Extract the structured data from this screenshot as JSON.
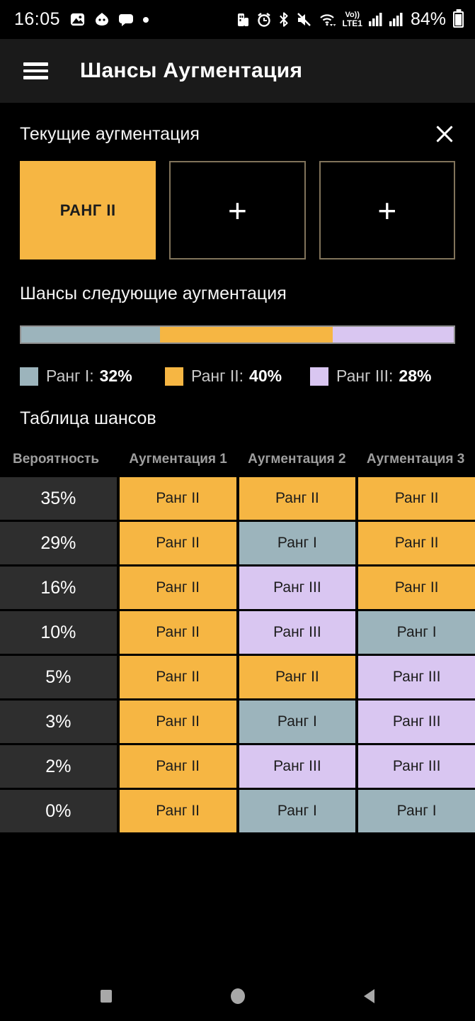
{
  "status_bar": {
    "time": "16:05",
    "battery_percent": "84%",
    "volte_line1": "Vo))",
    "volte_line2": "LTE1"
  },
  "app_bar": {
    "title": "Шансы Аугментация"
  },
  "current": {
    "title": "Текущие аугментация",
    "slot1_label": "РАНГ II",
    "slot1_color": "#f6b643",
    "slot2_label": "+",
    "slot3_label": "+"
  },
  "next_chances": {
    "title": "Шансы следующие аугментация",
    "segments": [
      {
        "name": "Ранг I",
        "label": "Ранг I:",
        "value": "32%",
        "percent": 32,
        "color": "#9cb4bc"
      },
      {
        "name": "Ранг II",
        "label": "Ранг II:",
        "value": "40%",
        "percent": 40,
        "color": "#f6b643"
      },
      {
        "name": "Ранг III",
        "label": "Ранг III:",
        "value": "28%",
        "percent": 28,
        "color": "#d9c6f1"
      }
    ]
  },
  "table": {
    "title": "Таблица шансов",
    "headers": [
      "Вероятность",
      "Аугментация 1",
      "Аугментация 2",
      "Аугментация 3"
    ],
    "rank_colors": {
      "1": "#9cb4bc",
      "2": "#f6b643",
      "3": "#d9c6f1"
    },
    "rows": [
      {
        "probability": "35%",
        "cells": [
          {
            "label": "Ранг II",
            "rank": 2
          },
          {
            "label": "Ранг II",
            "rank": 2
          },
          {
            "label": "Ранг II",
            "rank": 2
          }
        ]
      },
      {
        "probability": "29%",
        "cells": [
          {
            "label": "Ранг II",
            "rank": 2
          },
          {
            "label": "Ранг I",
            "rank": 1
          },
          {
            "label": "Ранг II",
            "rank": 2
          }
        ]
      },
      {
        "probability": "16%",
        "cells": [
          {
            "label": "Ранг II",
            "rank": 2
          },
          {
            "label": "Ранг III",
            "rank": 3
          },
          {
            "label": "Ранг II",
            "rank": 2
          }
        ]
      },
      {
        "probability": "10%",
        "cells": [
          {
            "label": "Ранг II",
            "rank": 2
          },
          {
            "label": "Ранг III",
            "rank": 3
          },
          {
            "label": "Ранг I",
            "rank": 1
          }
        ]
      },
      {
        "probability": "5%",
        "cells": [
          {
            "label": "Ранг II",
            "rank": 2
          },
          {
            "label": "Ранг II",
            "rank": 2
          },
          {
            "label": "Ранг III",
            "rank": 3
          }
        ]
      },
      {
        "probability": "3%",
        "cells": [
          {
            "label": "Ранг II",
            "rank": 2
          },
          {
            "label": "Ранг I",
            "rank": 1
          },
          {
            "label": "Ранг III",
            "rank": 3
          }
        ]
      },
      {
        "probability": "2%",
        "cells": [
          {
            "label": "Ранг II",
            "rank": 2
          },
          {
            "label": "Ранг III",
            "rank": 3
          },
          {
            "label": "Ранг III",
            "rank": 3
          }
        ]
      },
      {
        "probability": "0%",
        "cells": [
          {
            "label": "Ранг II",
            "rank": 2
          },
          {
            "label": "Ранг I",
            "rank": 1
          },
          {
            "label": "Ранг I",
            "rank": 1
          }
        ]
      }
    ]
  }
}
